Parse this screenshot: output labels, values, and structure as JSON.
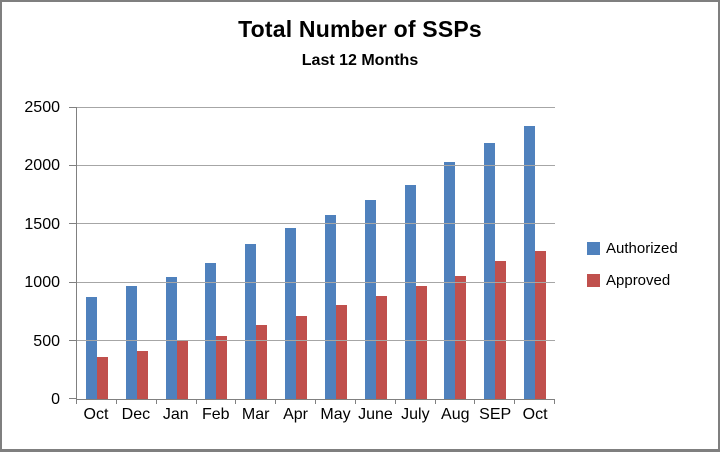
{
  "chart_data": {
    "type": "bar",
    "title": "Total Number of SSPs",
    "subtitle": "Last 12 Months",
    "categories": [
      "Oct",
      "Dec",
      "Jan",
      "Feb",
      "Mar",
      "Apr",
      "May",
      "June",
      "July",
      "Aug",
      "SEP",
      "Oct"
    ],
    "series": [
      {
        "name": "Authorized",
        "color": "#4F81BD",
        "values": [
          875,
          975,
          1045,
          1165,
          1330,
          1470,
          1580,
          1710,
          1835,
          2040,
          2200,
          2345
        ]
      },
      {
        "name": "Approved",
        "color": "#C0504D",
        "values": [
          360,
          415,
          500,
          545,
          640,
          715,
          810,
          885,
          970,
          1055,
          1185,
          1270
        ]
      }
    ],
    "ylim": [
      0,
      2500
    ],
    "yticks": [
      0,
      500,
      1000,
      1500,
      2000,
      2500
    ],
    "grid": true,
    "legend_position": "right",
    "colors": {
      "gridline": "#A6A6A6",
      "axis": "#808080",
      "text": "#000000",
      "frame_border": "#7F7F7F",
      "background": "#FFFFFF"
    }
  }
}
